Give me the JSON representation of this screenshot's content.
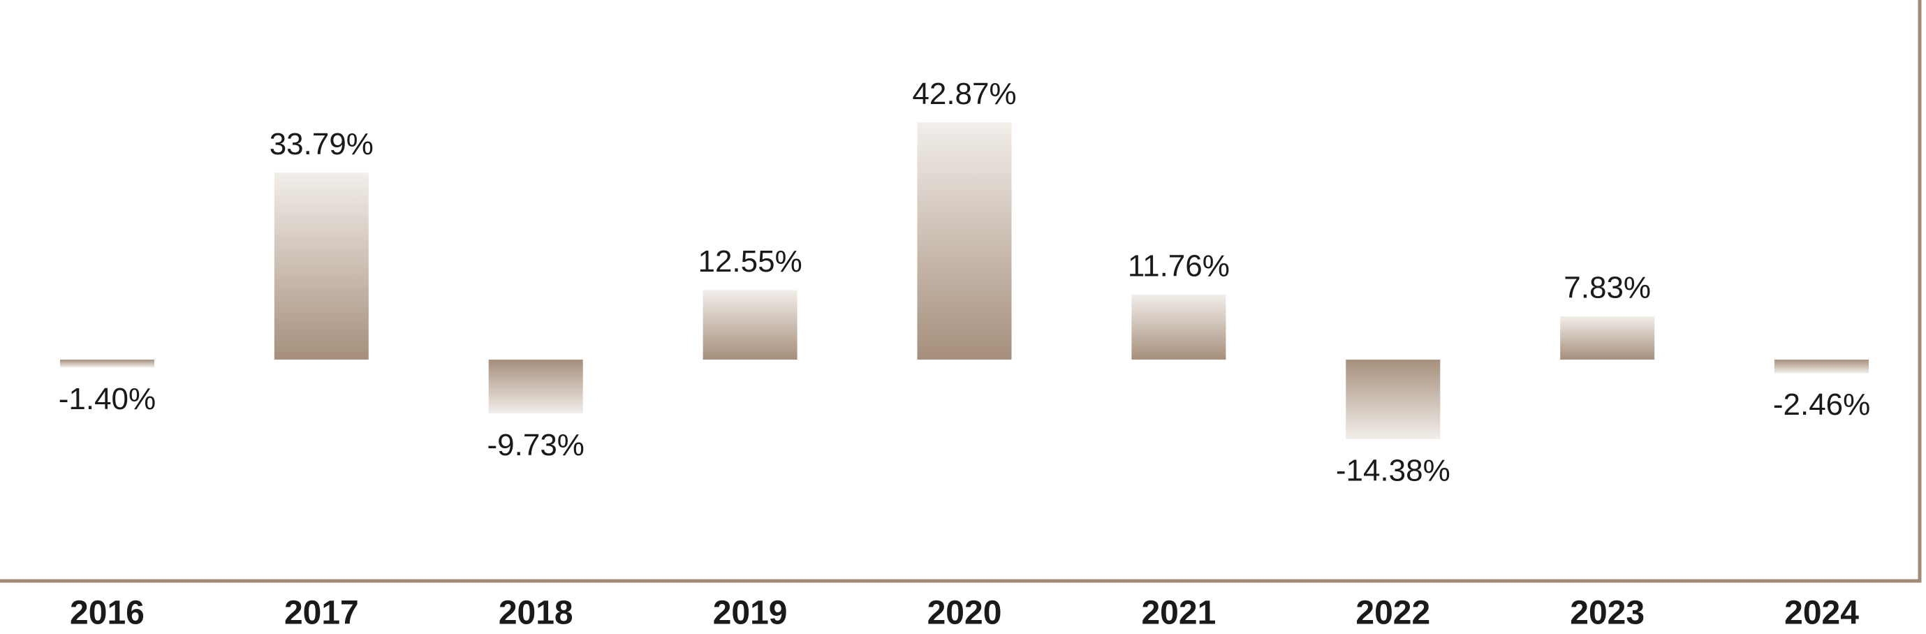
{
  "chart_data": {
    "type": "bar",
    "categories": [
      "2016",
      "2017",
      "2018",
      "2019",
      "2020",
      "2021",
      "2022",
      "2023",
      "2024"
    ],
    "values": [
      -1.4,
      33.79,
      -9.73,
      12.55,
      42.87,
      11.76,
      -14.38,
      7.83,
      -2.46
    ],
    "value_labels": [
      "-1.40%",
      "33.79%",
      "-9.73%",
      "12.55%",
      "42.87%",
      "11.76%",
      "-14.38%",
      "7.83%",
      "-2.46%"
    ],
    "color": "#a68f7c",
    "ylim": [
      -40,
      65
    ]
  }
}
